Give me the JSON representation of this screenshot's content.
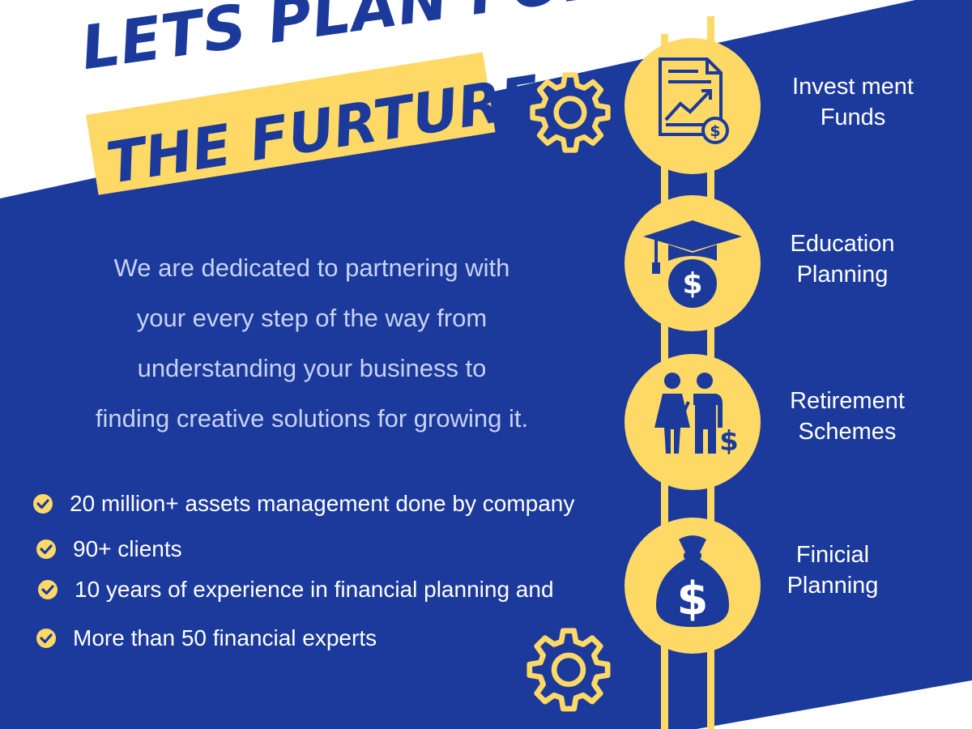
{
  "headline": {
    "line1": "LETS PLAN FOR",
    "line2": "THE FURTURE"
  },
  "intro": {
    "lines": [
      "We are dedicated to partnering with",
      "your every step of the way from",
      "understanding your business to",
      "finding creative solutions for growing it."
    ]
  },
  "highlights": [
    "20 million+ assets management done by company",
    "90+ clients",
    "10 years of experience in financial planning and",
    "More than 50 financial experts"
  ],
  "services": [
    {
      "line1": "Invest ment",
      "line2": "Funds",
      "icon": "investment-report-icon"
    },
    {
      "line1": "Education",
      "line2": "Planning",
      "icon": "graduation-cap-icon"
    },
    {
      "line1": "Retirement",
      "line2": "Schemes",
      "icon": "retired-couple-icon"
    },
    {
      "line1": "Finicial",
      "line2": "Planning",
      "icon": "money-bag-icon"
    }
  ],
  "colors": {
    "navy": "#1b3a9c",
    "yellow": "#ffd966",
    "white": "#ffffff"
  }
}
